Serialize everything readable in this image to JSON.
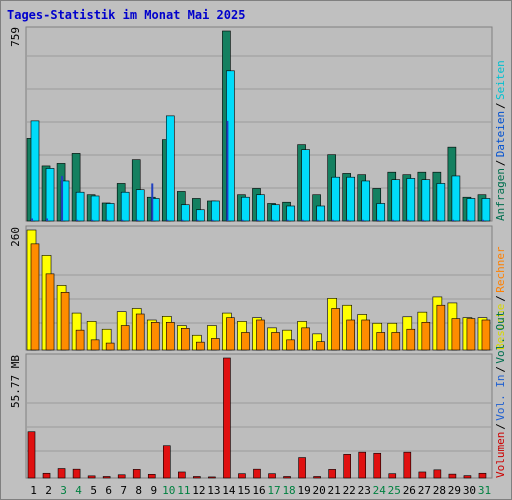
{
  "title": "Tages-Statistik im Monat Mai 2025",
  "colors": {
    "frame_bg": "#c0c0c0",
    "panel_bg": "#bdbdbd",
    "grid": "#9a9a9a",
    "title": "#0000cc",
    "weekday_tick": "#000000",
    "weekend_tick": "#008040"
  },
  "chart_data": [
    {
      "type": "bar",
      "panel": "requests",
      "max_label": "759",
      "ylim": [
        0,
        759
      ],
      "categories": [
        "1",
        "2",
        "3",
        "4",
        "5",
        "6",
        "7",
        "8",
        "9",
        "10",
        "11",
        "12",
        "13",
        "14",
        "15",
        "16",
        "17",
        "18",
        "19",
        "20",
        "21",
        "22",
        "23",
        "24",
        "25",
        "26",
        "27",
        "28",
        "29",
        "30",
        "31"
      ],
      "weekend_days": [
        "3",
        "4",
        "10",
        "11",
        "17",
        "18",
        "24",
        "25",
        "31"
      ],
      "legend": [
        {
          "label": "Anfragen",
          "color": "#006f4f"
        },
        {
          "label": "Dateien",
          "color": "#0050d0"
        },
        {
          "label": "Seiten",
          "color": "#00c0d0"
        }
      ],
      "series": [
        {
          "name": "Anfragen",
          "color": "#148060",
          "values": [
            330,
            220,
            230,
            270,
            105,
            72,
            150,
            245,
            95,
            325,
            118,
            90,
            80,
            759,
            105,
            130,
            70,
            75,
            305,
            105,
            265,
            190,
            185,
            130,
            195,
            185,
            195,
            195,
            295,
            95,
            105
          ]
        },
        {
          "name": "Dateien",
          "color": "#00dcfa",
          "values": [
            400,
            210,
            160,
            115,
            100,
            70,
            115,
            125,
            90,
            420,
            65,
            45,
            80,
            600,
            95,
            105,
            65,
            60,
            285,
            60,
            175,
            175,
            160,
            70,
            165,
            170,
            165,
            150,
            180,
            90,
            90
          ]
        },
        {
          "name": "Seiten",
          "color": "#2040c0",
          "values": [
            10,
            10,
            180,
            5,
            5,
            5,
            5,
            5,
            150,
            5,
            5,
            5,
            5,
            400,
            5,
            5,
            5,
            5,
            5,
            5,
            5,
            5,
            5,
            5,
            5,
            5,
            5,
            5,
            5,
            5,
            5
          ]
        }
      ]
    },
    {
      "type": "bar",
      "panel": "visits",
      "max_label": "260",
      "ylim": [
        0,
        260
      ],
      "categories": [
        "1",
        "2",
        "3",
        "4",
        "5",
        "6",
        "7",
        "8",
        "9",
        "10",
        "11",
        "12",
        "13",
        "14",
        "15",
        "16",
        "17",
        "18",
        "19",
        "20",
        "21",
        "22",
        "23",
        "24",
        "25",
        "26",
        "27",
        "28",
        "29",
        "30",
        "31"
      ],
      "legend": [
        {
          "label": "Besuche",
          "color": "#d8d800"
        },
        {
          "label": "Rechner",
          "color": "#ff8000"
        }
      ],
      "series": [
        {
          "name": "Besuche",
          "color": "#ffff00",
          "values": [
            260,
            205,
            140,
            80,
            62,
            45,
            83,
            90,
            65,
            73,
            53,
            32,
            53,
            80,
            62,
            70,
            48,
            43,
            62,
            35,
            112,
            97,
            77,
            58,
            58,
            72,
            82,
            115,
            102,
            70,
            70
          ]
        },
        {
          "name": "Rechner",
          "color": "#ff8c00",
          "values": [
            230,
            165,
            125,
            43,
            22,
            15,
            53,
            78,
            60,
            60,
            47,
            17,
            25,
            70,
            38,
            65,
            38,
            22,
            48,
            18,
            90,
            65,
            65,
            38,
            38,
            45,
            60,
            97,
            68,
            68,
            65
          ]
        }
      ]
    },
    {
      "type": "bar",
      "panel": "volume",
      "max_label": "55.77 MB",
      "ylim": [
        0,
        55.77
      ],
      "unit": "MB",
      "categories": [
        "1",
        "2",
        "3",
        "4",
        "5",
        "6",
        "7",
        "8",
        "9",
        "10",
        "11",
        "12",
        "13",
        "14",
        "15",
        "16",
        "17",
        "18",
        "19",
        "20",
        "21",
        "22",
        "23",
        "24",
        "25",
        "26",
        "27",
        "28",
        "29",
        "30",
        "31"
      ],
      "legend": [
        {
          "label": "Volumen",
          "color": "#cc0000"
        },
        {
          "label": "Vol. In",
          "color": "#2060d0"
        },
        {
          "label": "Vol. Out",
          "color": "#006f4f"
        }
      ],
      "series": [
        {
          "name": "Volumen",
          "color": "#e01010",
          "values": [
            21.5,
            2.2,
            4.4,
            4.1,
            1.0,
            0.7,
            1.5,
            4.0,
            1.7,
            15.0,
            2.8,
            0.7,
            0.5,
            55.77,
            2.0,
            4.1,
            2.0,
            0.7,
            9.5,
            0.7,
            4.0,
            11.0,
            12.0,
            11.5,
            2.0,
            12.0,
            2.8,
            3.8,
            1.8,
            1.1,
            2.2
          ]
        }
      ]
    }
  ]
}
